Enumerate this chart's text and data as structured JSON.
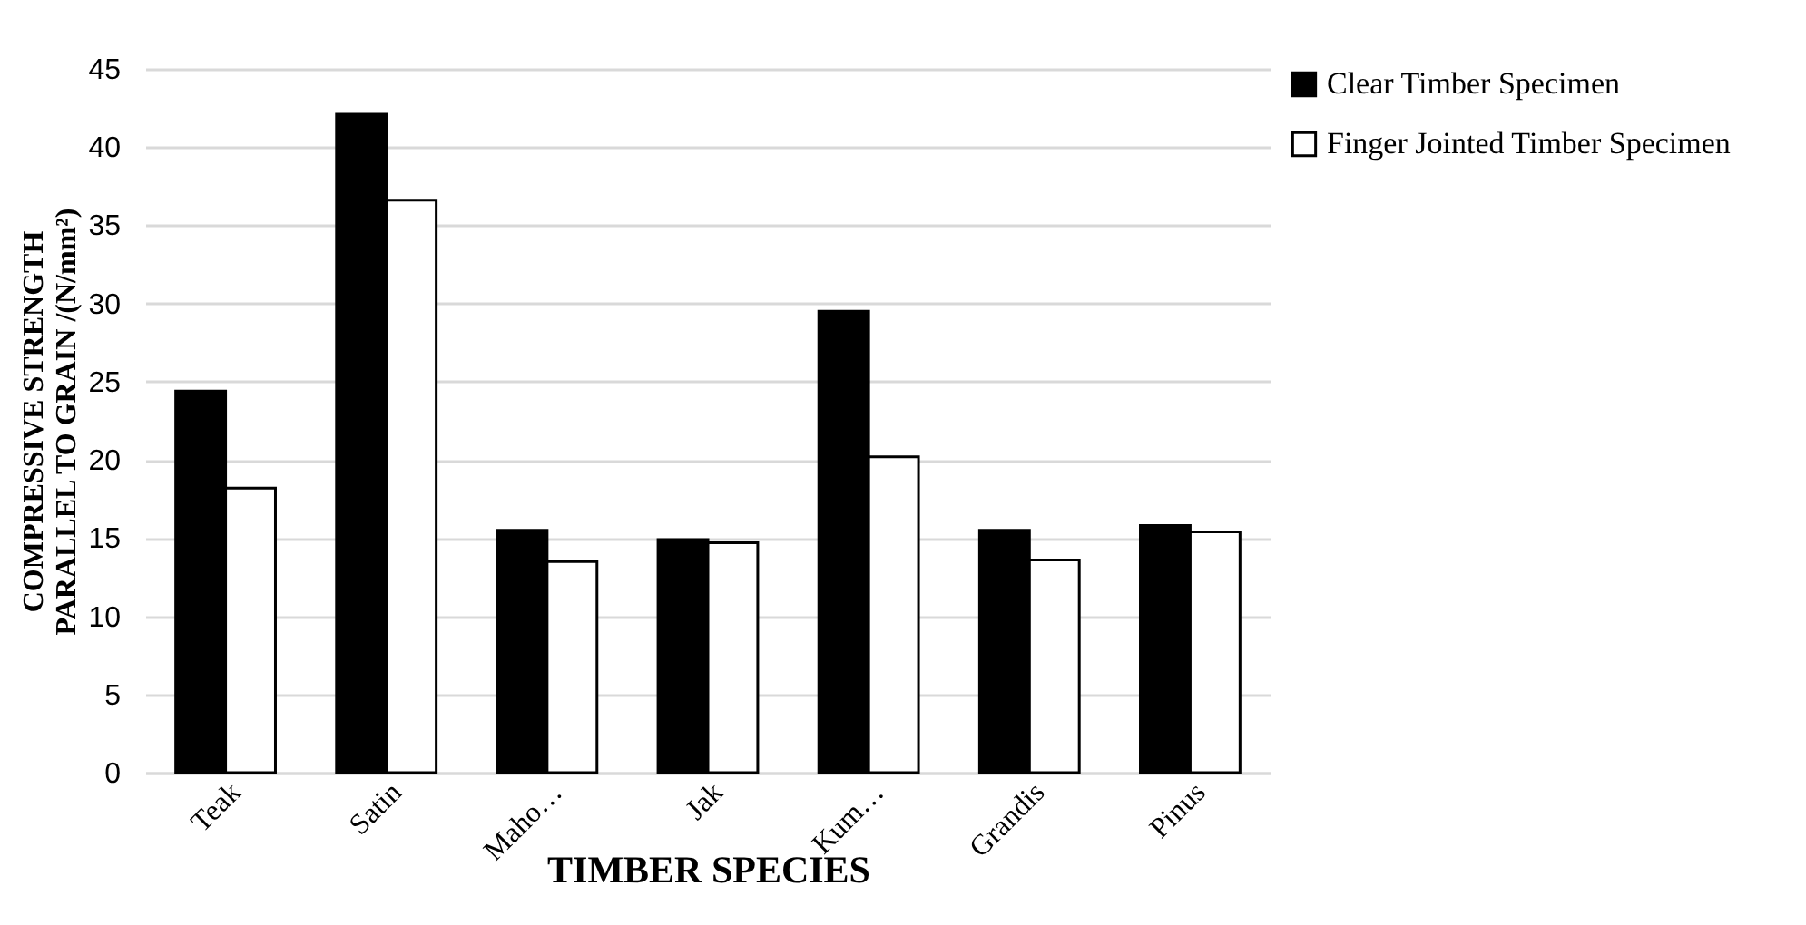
{
  "chart_data": {
    "type": "bar",
    "xlabel": "TIMBER SPECIES",
    "ylabel": "COMPRESSIVE STRENGTH\nPARALLEL TO GRAIN /(N/mm²)",
    "categories": [
      "Teak",
      "Satin",
      "Maho…",
      "Jak",
      "Kum…",
      "Grandis",
      "Pinus"
    ],
    "series": [
      {
        "name": "Clear Timber Specimen",
        "color": "#000000",
        "values": [
          24.4,
          42.1,
          15.5,
          14.9,
          29.5,
          15.5,
          15.8
        ]
      },
      {
        "name": "Finger Jointed Timber Specimen",
        "color": "#ffffff",
        "values": [
          18.2,
          36.6,
          13.5,
          14.7,
          20.2,
          13.6,
          15.4
        ]
      }
    ],
    "ylim": [
      0,
      45
    ],
    "yticks": [
      0,
      5,
      10,
      15,
      20,
      25,
      30,
      35,
      40,
      45
    ],
    "grid": "y",
    "legend": "top right"
  }
}
